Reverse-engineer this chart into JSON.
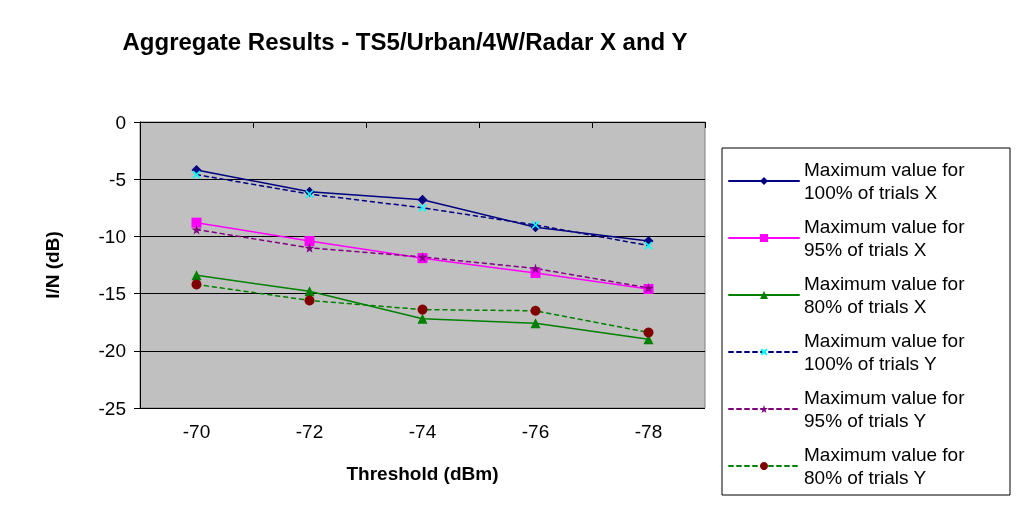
{
  "chart_data": {
    "type": "line",
    "title": "Aggregate Results - TS5/Urban/4W/Radar X and Y",
    "xlabel": "Threshold (dBm)",
    "ylabel": "I/N (dB)",
    "categories": [
      "-70",
      "-72",
      "-74",
      "-76",
      "-78"
    ],
    "series": [
      {
        "name": "Maximum value for 100% of trials X",
        "color": "#000080",
        "marker": "diamond",
        "line_style": "solid",
        "values": [
          -4.2,
          -6.1,
          -6.8,
          -9.2,
          -10.4
        ]
      },
      {
        "name": "Maximum value for 95% of trials X",
        "color": "#ff00ff",
        "marker": "square",
        "line_style": "solid",
        "values": [
          -8.8,
          -10.4,
          -11.9,
          -13.2,
          -14.6
        ]
      },
      {
        "name": "Maximum value for 80% of trials X",
        "color": "#008000",
        "marker": "triangle",
        "line_style": "solid",
        "values": [
          -13.4,
          -14.8,
          -17.2,
          -17.6,
          -19.0
        ]
      },
      {
        "name": "Maximum value for 100% of trials Y",
        "color": "#000080",
        "colors": [
          "#00ffff",
          "#00ffff",
          "#00ffff",
          "#00ffff",
          "#00ffff"
        ],
        "marker": "cross",
        "line_style": "dashed",
        "values": [
          -4.6,
          -6.3,
          -7.5,
          -9.0,
          -10.8
        ]
      },
      {
        "name": "Maximum value for 95% of trials Y",
        "color": "#800080",
        "marker": "star",
        "line_style": "dashed",
        "values": [
          -9.4,
          -11.0,
          -11.8,
          -12.8,
          -14.5
        ]
      },
      {
        "name": "Maximum value for 80% of trials Y",
        "color": "#008000",
        "colors": [
          "#800000",
          "#800000",
          "#800000",
          "#800000",
          "#800000"
        ],
        "marker": "circle",
        "line_style": "dashed",
        "values": [
          -14.2,
          -15.6,
          -16.4,
          -16.5,
          -18.4
        ]
      }
    ],
    "ylim": [
      -25,
      0
    ],
    "yticks": [
      -25,
      -20,
      -15,
      -10,
      -5,
      0
    ],
    "grid": "y",
    "legend": "right"
  }
}
